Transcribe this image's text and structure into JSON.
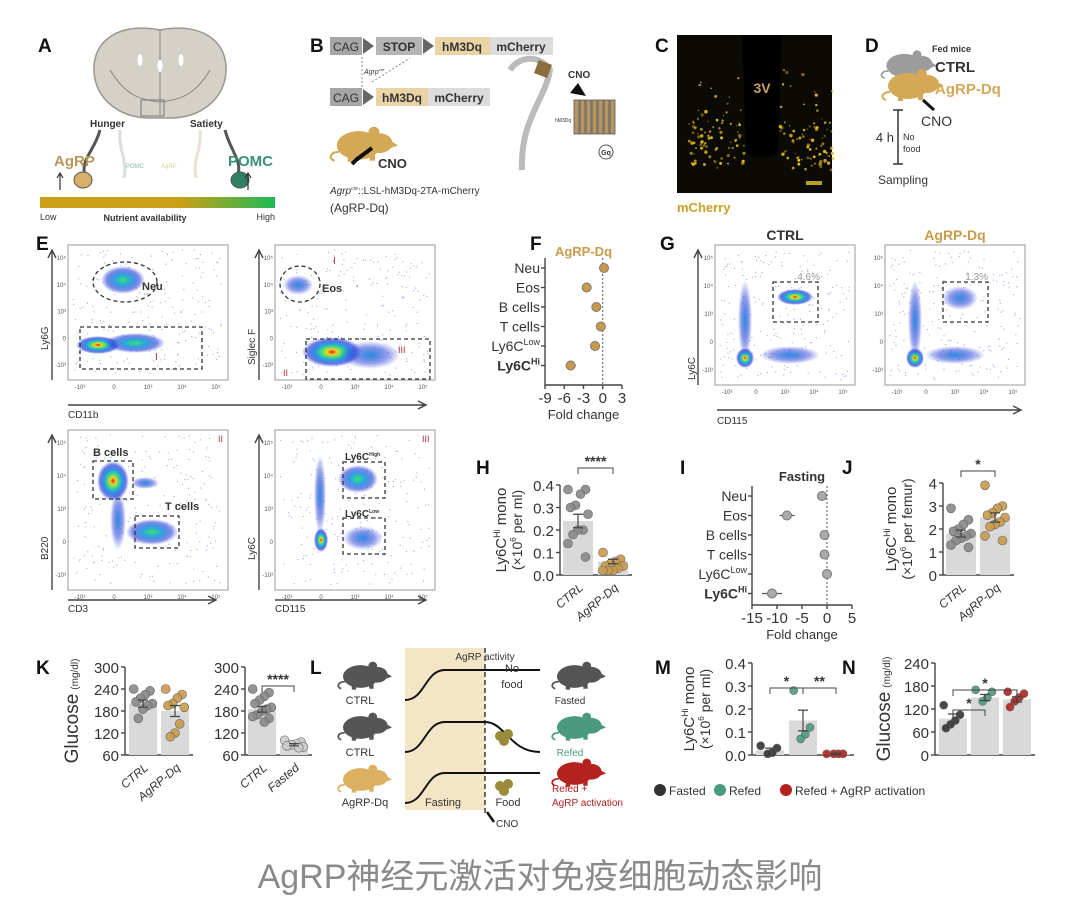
{
  "colors": {
    "agrp": "#c99a4a",
    "pomc": "#3a8f7a",
    "ctrl_gray": "#777777",
    "fasted": "#333333",
    "refed": "#4a9a80",
    "refed_agrp": "#b3221e",
    "bar": "#d9d9d9",
    "caption": "#8a8a8a"
  },
  "panel_labels": [
    "A",
    "B",
    "C",
    "D",
    "E",
    "F",
    "G",
    "H",
    "I",
    "J",
    "K",
    "L",
    "M",
    "N"
  ],
  "panelA": {
    "hunger": "Hunger",
    "satiety": "Satiety",
    "agrp": "AgRP",
    "pomc": "POMC",
    "agrp_faded": "AgRP",
    "pomc_faded": "POMC",
    "low": "Low",
    "nutrient": "Nutrient availability",
    "high": "High"
  },
  "panelB": {
    "cag": "CAG",
    "stop": "STOP",
    "hm3dq": "hM3Dq",
    "mcherry": "mCherry",
    "agrp_cre_base": "Agrp",
    "agrp_cre_sup": "cre",
    "cno": "CNO",
    "hm3dq_small": "hM3Dq",
    "gq": "Gq",
    "genotype_base": "Agrp",
    "genotype_sup": "cre",
    "genotype_rest": "::LSL-hM3Dq-2TA-mCherry",
    "short": "(AgRP-Dq)"
  },
  "panelC": {
    "ventricle": "3V",
    "stain": "mCherry"
  },
  "panelD": {
    "fed": "Fed mice",
    "ctrl": "CTRL",
    "agrp": "AgRP-Dq",
    "cno": "CNO",
    "duration": "4 h",
    "no": "No",
    "food": "food",
    "sampling": "Sampling"
  },
  "panelE": {
    "ly6g": "Ly6G",
    "siglecf": "Siglec F",
    "b220": "B220",
    "ly6c": "Ly6C",
    "cd11b": "CD11b",
    "cd3": "CD3",
    "cd115": "CD115",
    "neu": "Neu",
    "eos": "Eos",
    "bcells": "B cells",
    "tcells": "T cells",
    "ly6c_hi_base": "Ly6C",
    "ly6c_hi_sup": "High",
    "ly6c_lo_base": "Ly6C",
    "ly6c_lo_sup": "Low",
    "gate_i": "I",
    "gate_ii": "II",
    "gate_iii": "III"
  },
  "flow_ticks_x": [
    "-10³",
    "0",
    "10³",
    "10⁴",
    "10⁵"
  ],
  "flow_ticks_y": [
    "10⁵",
    "10⁴",
    "10³",
    "0",
    "-10³"
  ],
  "panelG": {
    "ctrl": "CTRL",
    "agrp": "AgRP-Dq",
    "ctrl_pct": "4.6%",
    "agrp_pct": "1.3%",
    "xlabel": "CD115",
    "ylabel": "Ly6C"
  },
  "caption": "AgRP神经元激活对免疫细胞动态影响",
  "chart_data": [
    {
      "id": "F",
      "type": "scatter",
      "title": "AgRP-Dq",
      "xlabel": "Fold change",
      "xlim": [
        -9,
        3
      ],
      "xticks": [
        "-9",
        "-6",
        "-3",
        "0",
        "3"
      ],
      "xtick_values": [
        -9,
        -6,
        -3,
        0,
        3
      ],
      "categories": [
        {
          "base": "Neu",
          "sup": ""
        },
        {
          "base": "Eos",
          "sup": ""
        },
        {
          "base": "B cells",
          "sup": ""
        },
        {
          "base": "T cells",
          "sup": ""
        },
        {
          "base": "Ly6C",
          "sup": "Low"
        },
        {
          "base": "Ly6C",
          "sup": "Hi"
        }
      ],
      "values": [
        0.2,
        -2.5,
        -1.0,
        -0.3,
        -1.2,
        -5.0
      ],
      "errors": [
        0.2,
        0.6,
        0.3,
        0.2,
        0.4,
        0.8
      ],
      "color": "#c99a4a"
    },
    {
      "id": "I",
      "type": "scatter",
      "title": "Fasting",
      "xlabel": "Fold change",
      "xlim": [
        -15,
        5
      ],
      "xticks": [
        "-15",
        "-10",
        "-5",
        "0",
        "5"
      ],
      "xtick_values": [
        -15,
        -10,
        -5,
        0,
        5
      ],
      "categories": [
        {
          "base": "Neu",
          "sup": ""
        },
        {
          "base": "Eos",
          "sup": ""
        },
        {
          "base": "B cells",
          "sup": ""
        },
        {
          "base": "T cells",
          "sup": ""
        },
        {
          "base": "Ly6C",
          "sup": "Low"
        },
        {
          "base": "Ly6C",
          "sup": "Hi"
        }
      ],
      "values": [
        -1.0,
        -8.0,
        -0.5,
        -0.5,
        0.0,
        -11.0
      ],
      "errors": [
        0.3,
        1.5,
        0.3,
        0.3,
        0.3,
        2.0
      ],
      "color": "#aaaaaa"
    },
    {
      "id": "H",
      "type": "bar",
      "ylabel_base": "Ly6C",
      "ylabel_sup": "Hi",
      "ylabel_rest": " mono",
      "ylabel2": "(×10",
      "ylabel2_sup": "6",
      "ylabel2_rest": " per ml)",
      "ylim": [
        0,
        0.4
      ],
      "yticks": [
        "0.0",
        "0.1",
        "0.2",
        "0.3",
        "0.4"
      ],
      "ytick_values": [
        0,
        0.1,
        0.2,
        0.3,
        0.4
      ],
      "categories": [
        "CTRL",
        "AgRP-Dq"
      ],
      "means": [
        0.24,
        0.06
      ],
      "sem": [
        0.03,
        0.01
      ],
      "colors": [
        "#888888",
        "#c99a4a"
      ],
      "points": [
        [
          0.38,
          0.38,
          0.36,
          0.31,
          0.3,
          0.27,
          0.2,
          0.2,
          0.18,
          0.14,
          0.08
        ],
        [
          0.1,
          0.07,
          0.06,
          0.05,
          0.04,
          0.04,
          0.03,
          0.02,
          0.02,
          0.02
        ]
      ],
      "significance": [
        {
          "from": 0,
          "to": 1,
          "label": "****"
        }
      ]
    },
    {
      "id": "J",
      "type": "bar",
      "ylabel_base": "Ly6C",
      "ylabel_sup": "Hi",
      "ylabel_rest": " mono",
      "ylabel2": "(×10",
      "ylabel2_sup": "6",
      "ylabel2_rest": " per femur)",
      "ylim": [
        0,
        4
      ],
      "yticks": [
        "0",
        "1",
        "2",
        "3",
        "4"
      ],
      "ytick_values": [
        0,
        1,
        2,
        3,
        4
      ],
      "categories": [
        "CTRL",
        "AgRP-Dq"
      ],
      "means": [
        1.8,
        2.5
      ],
      "sem": [
        0.15,
        0.2
      ],
      "colors": [
        "#888888",
        "#c99a4a"
      ],
      "points": [
        [
          2.9,
          2.4,
          2.2,
          2.0,
          1.9,
          1.8,
          1.7,
          1.6,
          1.5,
          1.3,
          1.2
        ],
        [
          3.9,
          3.0,
          2.9,
          2.7,
          2.6,
          2.5,
          2.3,
          2.2,
          2.1,
          1.7,
          1.5
        ]
      ],
      "significance": [
        {
          "from": 0,
          "to": 1,
          "label": "*"
        }
      ]
    },
    {
      "id": "K1",
      "type": "bar",
      "ylabel_base": "Glucose",
      "ylabel_unit": "(mg/dl)",
      "ylim": [
        60,
        300
      ],
      "yticks": [
        "60",
        "120",
        "180",
        "240",
        "300"
      ],
      "ytick_values": [
        60,
        120,
        180,
        240,
        300
      ],
      "categories": [
        "CTRL",
        "AgRP-Dq"
      ],
      "means": [
        200,
        180
      ],
      "sem": [
        10,
        15
      ],
      "colors": [
        "#888888",
        "#c99a4a"
      ],
      "points": [
        [
          240,
          235,
          225,
          215,
          205,
          200,
          195,
          185,
          160
        ],
        [
          240,
          225,
          215,
          200,
          195,
          190,
          145,
          120,
          110
        ]
      ],
      "significance": []
    },
    {
      "id": "K2",
      "type": "bar",
      "ylim": [
        60,
        300
      ],
      "yticks": [
        "60",
        "120",
        "180",
        "240",
        "300"
      ],
      "ytick_values": [
        60,
        120,
        180,
        240,
        300
      ],
      "categories": [
        "CTRL",
        "Fasted"
      ],
      "means": [
        185,
        88
      ],
      "sem": [
        8,
        3
      ],
      "colors": [
        "#888888",
        "#cccccc"
      ],
      "points": [
        [
          240,
          230,
          220,
          210,
          200,
          190,
          185,
          180,
          170,
          165,
          160,
          150
        ],
        [
          100,
          95,
          90,
          88,
          85,
          82,
          80
        ]
      ],
      "significance": [
        {
          "from": 0,
          "to": 1,
          "label": "****"
        }
      ]
    },
    {
      "id": "M",
      "type": "bar",
      "ylabel_base": "Ly6C",
      "ylabel_sup": "Hi",
      "ylabel_rest": " mono",
      "ylabel2": "(×10",
      "ylabel2_sup": "6",
      "ylabel2_rest": " per ml)",
      "ylim": [
        0,
        0.4
      ],
      "yticks": [
        "0.0",
        "0.1",
        "0.2",
        "0.3",
        "0.4"
      ],
      "ytick_values": [
        0,
        0.1,
        0.2,
        0.3,
        0.4
      ],
      "categories": [
        "Fasted",
        "Refed",
        "Refed + AgRP activation"
      ],
      "means": [
        0.02,
        0.15,
        0.005
      ],
      "sem": [
        0.01,
        0.045,
        0.002
      ],
      "colors": [
        "#333333",
        "#4a9a80",
        "#b3221e"
      ],
      "points": [
        [
          0.04,
          0.03,
          0.01,
          0.005
        ],
        [
          0.28,
          0.12,
          0.09,
          0.07
        ],
        [
          0.005,
          0.005,
          0.005,
          0.005
        ]
      ],
      "significance": [
        {
          "from": 0,
          "to": 1,
          "label": "*"
        },
        {
          "from": 1,
          "to": 2,
          "label": "**"
        }
      ],
      "legend": "bottom"
    },
    {
      "id": "N",
      "type": "bar",
      "ylabel_base": "Glucose",
      "ylabel_unit": "(mg/dl)",
      "ylim": [
        0,
        240
      ],
      "yticks": [
        "0",
        "60",
        "120",
        "180",
        "240"
      ],
      "ytick_values": [
        0,
        60,
        120,
        180,
        240
      ],
      "categories": [
        "Fasted",
        "Refed",
        "Refed + AgRP activation"
      ],
      "means": [
        95,
        150,
        145
      ],
      "sem": [
        12,
        8,
        7
      ],
      "colors": [
        "#333333",
        "#4a9a80",
        "#b3221e"
      ],
      "points": [
        [
          130,
          105,
          90,
          80,
          70
        ],
        [
          170,
          165,
          150,
          140
        ],
        [
          165,
          160,
          150,
          140,
          125
        ]
      ],
      "significance": [
        {
          "from": 0,
          "to": 1,
          "label": "*"
        },
        {
          "from": 0,
          "to": 2,
          "label": "*"
        }
      ]
    }
  ],
  "panelL": {
    "activity": "AgRP activity",
    "ctrl1": "CTRL",
    "ctrl2": "CTRL",
    "agrp": "AgRP-Dq",
    "fasting": "Fasting",
    "no": "No",
    "food_word": "food",
    "food": "Food",
    "cno": "CNO",
    "fasted": "Fasted",
    "refed": "Refed",
    "refed_agrp1": "Refed +",
    "refed_agrp2": "AgRP activation"
  }
}
